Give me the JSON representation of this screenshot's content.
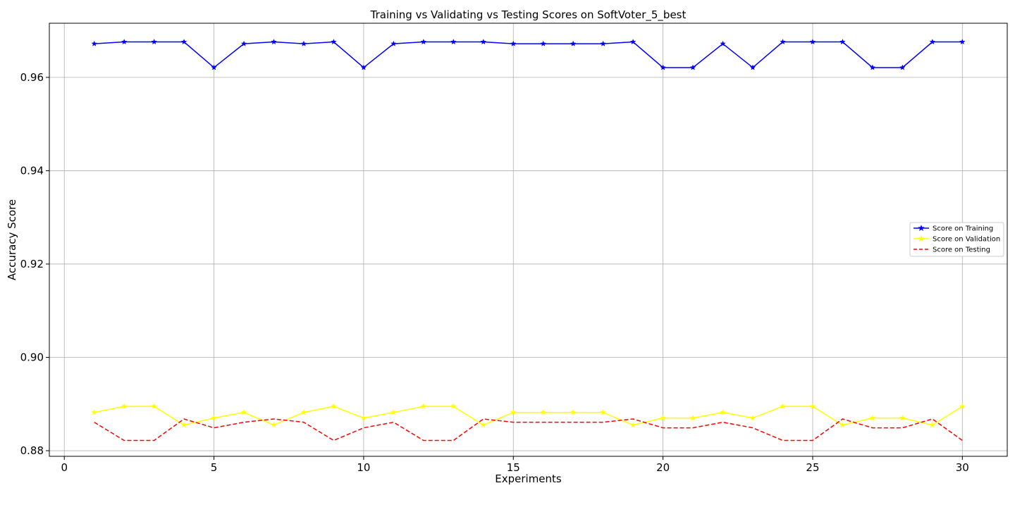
{
  "chart_data": {
    "type": "line",
    "title": "Training vs Validating vs Testing Scores on SoftVoter_5_best",
    "xlabel": "Experiments",
    "ylabel": "Accuracy Score",
    "xlim": [
      -0.5,
      31.5
    ],
    "ylim": [
      0.8788,
      0.9716
    ],
    "xticks": [
      0,
      5,
      10,
      15,
      20,
      25,
      30
    ],
    "yticks": [
      0.88,
      0.9,
      0.92,
      0.94,
      0.96
    ],
    "ytick_labels": [
      "0.88",
      "0.90",
      "0.92",
      "0.94",
      "0.96"
    ],
    "grid": true,
    "legend_position": "center-right",
    "x": [
      1,
      2,
      3,
      4,
      5,
      6,
      7,
      8,
      9,
      10,
      11,
      12,
      13,
      14,
      15,
      16,
      17,
      18,
      19,
      20,
      21,
      22,
      23,
      24,
      25,
      26,
      27,
      28,
      29,
      30
    ],
    "series": [
      {
        "name": "Score on Training",
        "color": "#0000ff",
        "linestyle": "solid",
        "marker": "star",
        "values": [
          0.9672,
          0.9676,
          0.9676,
          0.9676,
          0.9621,
          0.9672,
          0.9676,
          0.9672,
          0.9676,
          0.9621,
          0.9672,
          0.9676,
          0.9676,
          0.9676,
          0.9672,
          0.9672,
          0.9672,
          0.9672,
          0.9676,
          0.9621,
          0.9621,
          0.9672,
          0.9621,
          0.9676,
          0.9676,
          0.9676,
          0.9621,
          0.9621,
          0.9676,
          0.9676
        ]
      },
      {
        "name": "Score on Validation",
        "color": "#ffff00",
        "linestyle": "solid",
        "marker": "star",
        "values": [
          0.8882,
          0.8895,
          0.8895,
          0.8855,
          0.887,
          0.8882,
          0.8855,
          0.8882,
          0.8895,
          0.887,
          0.8882,
          0.8895,
          0.8895,
          0.8855,
          0.8882,
          0.8882,
          0.8882,
          0.8882,
          0.8855,
          0.887,
          0.887,
          0.8882,
          0.887,
          0.8895,
          0.8895,
          0.8855,
          0.887,
          0.887,
          0.8855,
          0.8895
        ]
      },
      {
        "name": "Score on Testing",
        "color": "#ff0000",
        "linestyle": "dashed",
        "marker": "none",
        "values": [
          0.8861,
          0.8822,
          0.8822,
          0.8868,
          0.8849,
          0.8861,
          0.8868,
          0.8861,
          0.8822,
          0.8849,
          0.8861,
          0.8822,
          0.8822,
          0.8868,
          0.8861,
          0.8861,
          0.8861,
          0.8861,
          0.8868,
          0.8849,
          0.8849,
          0.8861,
          0.8849,
          0.8822,
          0.8822,
          0.8868,
          0.8849,
          0.8849,
          0.8868,
          0.8822
        ]
      }
    ]
  }
}
